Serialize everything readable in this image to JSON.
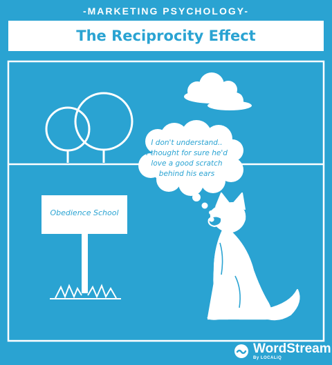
{
  "header": {
    "kicker": "-MARKETING PSYCHOLOGY-",
    "title": "The Reciprocity Effect"
  },
  "scene": {
    "thought_lines": [
      "I don't understand..",
      "I thought for sure he'd",
      "love a good scratch",
      "behind his ears"
    ],
    "sign_text": "Obedience School"
  },
  "brand": {
    "name": "WordStream",
    "by": "By LOCALiQ",
    "logo_icon": "wordstream-logo-icon"
  },
  "colors": {
    "background": "#2aa3d2",
    "ink": "#ffffff"
  }
}
